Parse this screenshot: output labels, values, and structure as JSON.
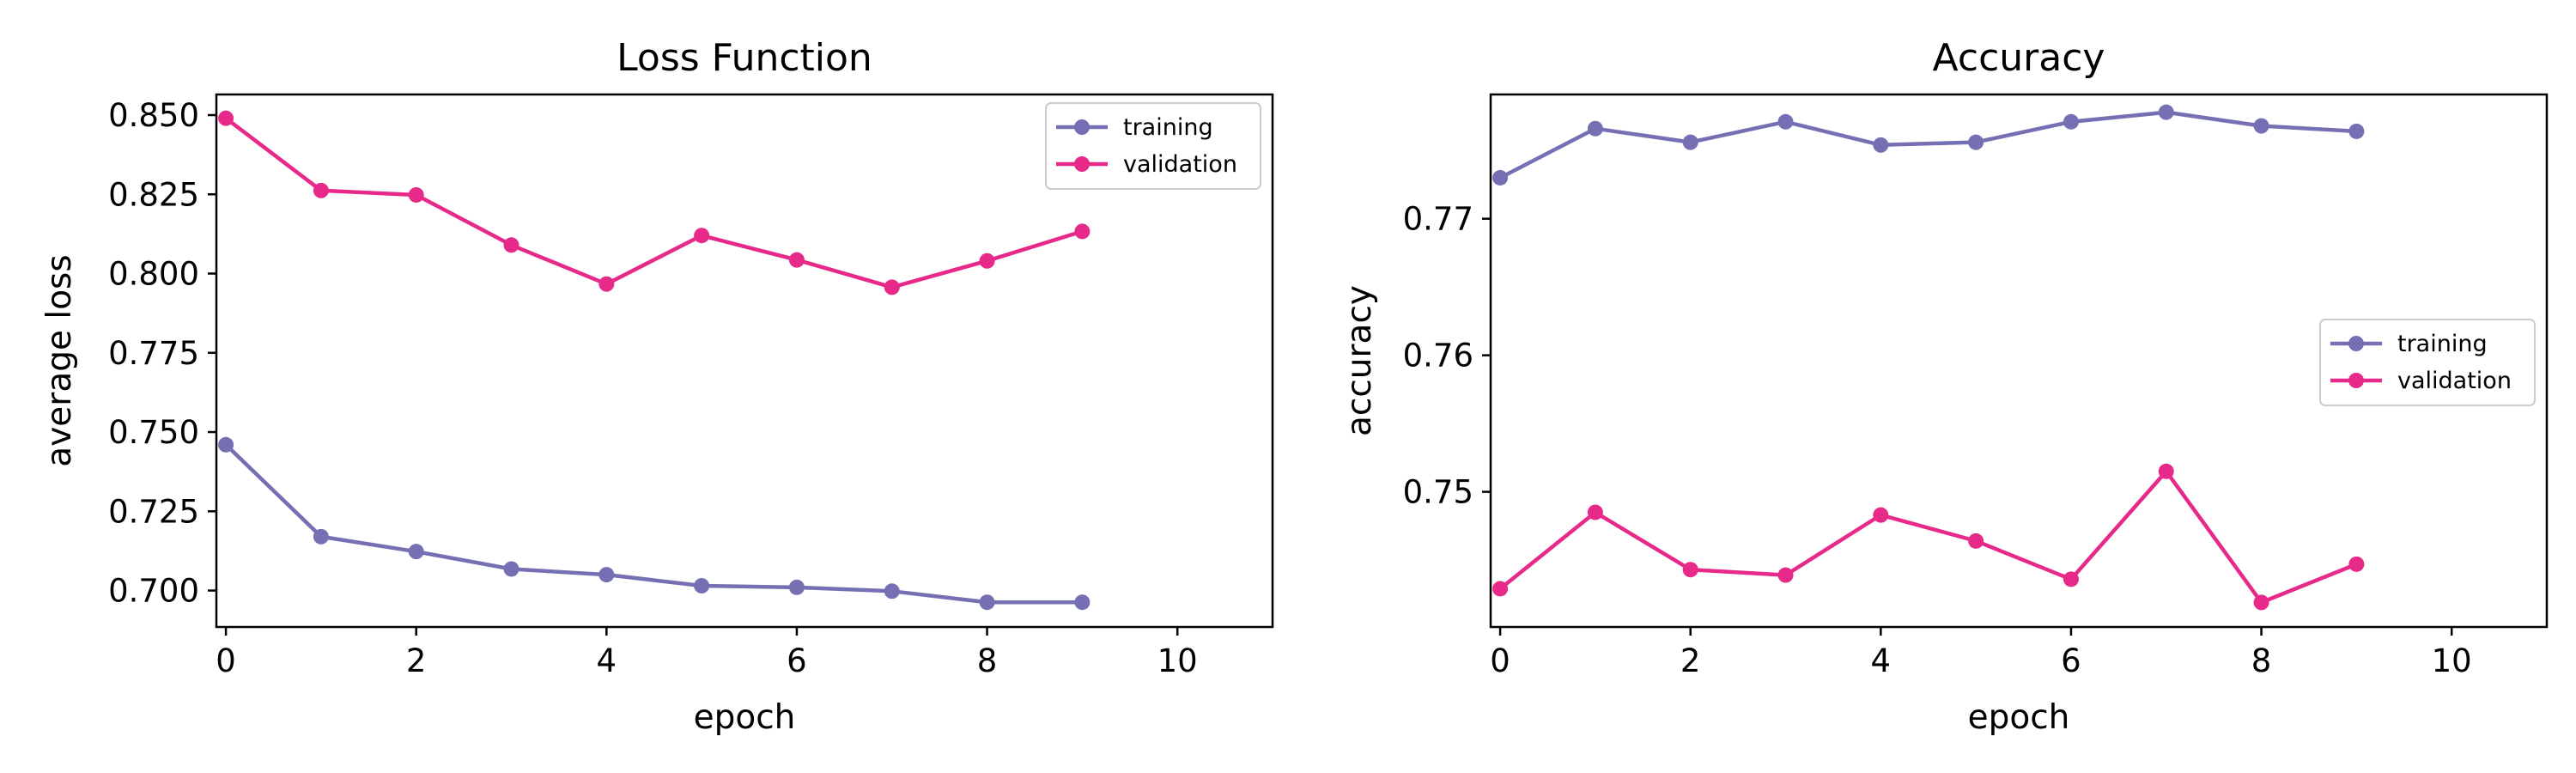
{
  "colors": {
    "training": "#7570b3",
    "validation": "#e7298a"
  },
  "chart_data": [
    {
      "type": "line",
      "title": "Loss Function",
      "xlabel": "epoch",
      "ylabel": "average loss",
      "xlim": [
        -0.1,
        11
      ],
      "ylim": [
        0.6885,
        0.8565
      ],
      "xticks": [
        0,
        2,
        4,
        6,
        8,
        10
      ],
      "xtick_labels": [
        "0",
        "2",
        "4",
        "6",
        "8",
        "10"
      ],
      "yticks": [
        0.7,
        0.725,
        0.75,
        0.775,
        0.8,
        0.825,
        0.85
      ],
      "ytick_labels": [
        "0.700",
        "0.725",
        "0.750",
        "0.775",
        "0.800",
        "0.825",
        "0.850"
      ],
      "legend": "top-right",
      "grid": false,
      "x": [
        0,
        1,
        2,
        3,
        4,
        5,
        6,
        7,
        8,
        9
      ],
      "series": [
        {
          "name": "training",
          "color": "#7570b3",
          "values": [
            0.746,
            0.717,
            0.7123,
            0.7068,
            0.705,
            0.7015,
            0.701,
            0.6998,
            0.6963,
            0.6963
          ]
        },
        {
          "name": "validation",
          "color": "#e7298a",
          "values": [
            0.849,
            0.8262,
            0.8248,
            0.809,
            0.7967,
            0.812,
            0.8043,
            0.7957,
            0.804,
            0.8133
          ]
        }
      ]
    },
    {
      "type": "line",
      "title": "Accuracy",
      "xlabel": "epoch",
      "ylabel": "accuracy",
      "xlim": [
        -0.1,
        11
      ],
      "ylim": [
        0.7401,
        0.7791
      ],
      "xticks": [
        0,
        2,
        4,
        6,
        8,
        10
      ],
      "xtick_labels": [
        "0",
        "2",
        "4",
        "6",
        "8",
        "10"
      ],
      "yticks": [
        0.75,
        0.76,
        0.77
      ],
      "ytick_labels": [
        "0.75",
        "0.76",
        "0.77"
      ],
      "legend": "center-right",
      "grid": false,
      "x": [
        0,
        1,
        2,
        3,
        4,
        5,
        6,
        7,
        8,
        9
      ],
      "series": [
        {
          "name": "training",
          "color": "#7570b3",
          "values": [
            0.773,
            0.7766,
            0.7756,
            0.7771,
            0.7754,
            0.7756,
            0.7771,
            0.7778,
            0.7768,
            0.7764
          ]
        },
        {
          "name": "validation",
          "color": "#e7298a",
          "values": [
            0.7429,
            0.7485,
            0.7443,
            0.7439,
            0.7483,
            0.7464,
            0.7436,
            0.7515,
            0.7419,
            0.7447
          ]
        }
      ]
    }
  ]
}
